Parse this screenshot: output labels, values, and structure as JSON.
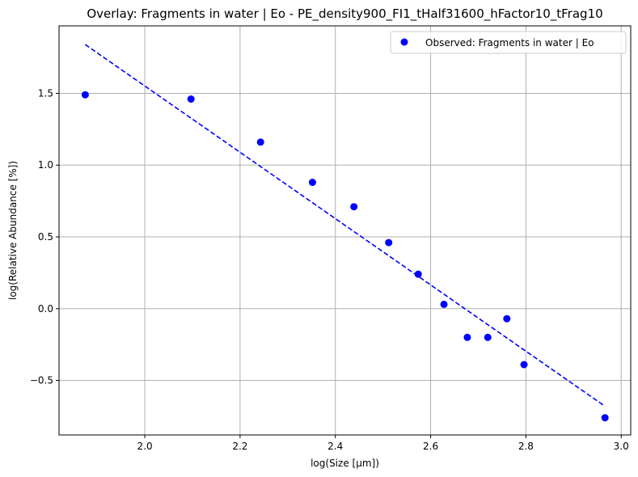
{
  "chart_data": {
    "type": "scatter",
    "title": "Overlay: Fragments in water | Eo - PE_density900_FI1_tHalf31600_hFactor10_tFrag10",
    "xlabel": "log(Size [µm])",
    "ylabel": "log(Relative Abundance [%])",
    "xlim": [
      1.82,
      3.02
    ],
    "ylim": [
      -0.88,
      1.97
    ],
    "x_ticks": [
      2.0,
      2.2,
      2.4,
      2.6,
      2.8,
      3.0
    ],
    "x_tick_labels": [
      "2.0",
      "2.2",
      "2.4",
      "2.6",
      "2.8",
      "3.0"
    ],
    "y_ticks": [
      -0.5,
      0.0,
      0.5,
      1.0,
      1.5
    ],
    "y_tick_labels": [
      "−0.5",
      "0.0",
      "0.5",
      "1.0",
      "1.5"
    ],
    "grid": true,
    "legend_position": "top-right",
    "series": [
      {
        "name": "Observed: Fragments in water | Eo",
        "kind": "scatter",
        "color": "#0000ff",
        "x": [
          1.875,
          2.097,
          2.243,
          2.352,
          2.439,
          2.512,
          2.574,
          2.628,
          2.677,
          2.72,
          2.76,
          2.796,
          2.966
        ],
        "y": [
          1.49,
          1.46,
          1.16,
          0.88,
          0.71,
          0.46,
          0.24,
          0.03,
          -0.2,
          -0.2,
          -0.07,
          -0.39,
          -0.76
        ]
      },
      {
        "kind": "line",
        "style": "dashed",
        "color": "#0000ff",
        "x": [
          1.875,
          2.966
        ],
        "y": [
          1.84,
          -0.68
        ]
      }
    ]
  }
}
